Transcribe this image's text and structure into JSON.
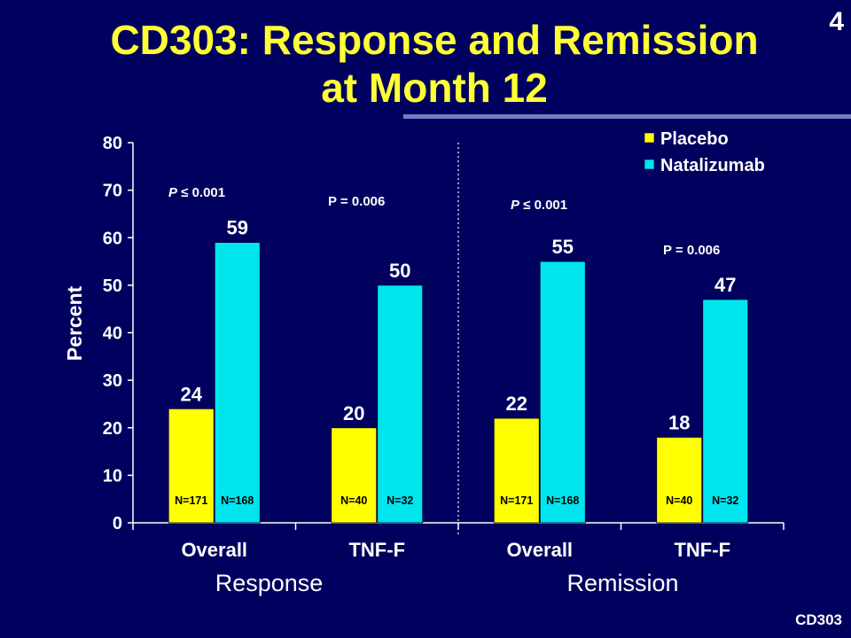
{
  "slide": {
    "title_line1": "CD303: Response and Remission",
    "title_line2": "at Month 12",
    "page_number": "4",
    "footer_code": "CD303"
  },
  "colors": {
    "background": "#00005e",
    "title": "#ffff33",
    "placebo": "#ffff00",
    "natalizumab": "#00e5ee"
  },
  "chart_data": {
    "type": "bar",
    "ylabel": "Percent",
    "ylim": [
      0,
      80
    ],
    "yticks": [
      0,
      10,
      20,
      30,
      40,
      50,
      60,
      70,
      80
    ],
    "categories": [
      "Overall",
      "TNF-F",
      "Overall",
      "TNF-F"
    ],
    "groups": [
      {
        "label": "Response",
        "categories": [
          "Overall",
          "TNF-F"
        ]
      },
      {
        "label": "Remission",
        "categories": [
          "Overall",
          "TNF-F"
        ]
      }
    ],
    "series": [
      {
        "name": "Placebo",
        "values": [
          24,
          20,
          22,
          18
        ],
        "n_labels": [
          "N=171",
          "N=40",
          "N=171",
          "N=40"
        ]
      },
      {
        "name": "Natalizumab",
        "values": [
          59,
          50,
          55,
          47
        ],
        "n_labels": [
          "N=168",
          "N=32",
          "N=168",
          "N=32"
        ]
      }
    ],
    "p_values": [
      "P ≤ 0.001",
      "P = 0.006",
      "P ≤ 0.001",
      "P = 0.006"
    ],
    "legend_position": "top-right",
    "grid": false
  }
}
